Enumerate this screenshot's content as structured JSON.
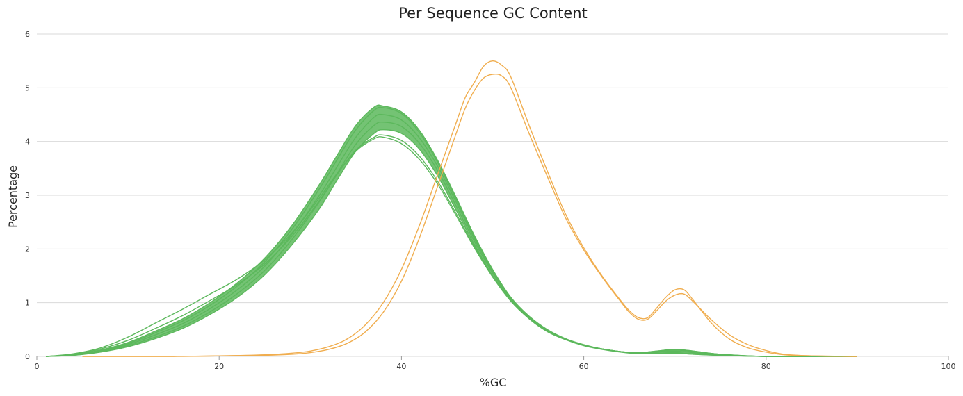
{
  "chart_data": {
    "type": "line",
    "title": "Per Sequence GC Content",
    "xlabel": "%GC",
    "ylabel": "Percentage",
    "xlim": [
      0,
      100
    ],
    "ylim": [
      0,
      6
    ],
    "xticks": [
      0,
      20,
      40,
      60,
      80,
      100
    ],
    "yticks": [
      0,
      1,
      2,
      3,
      4,
      5,
      6
    ],
    "grid": "horizontal",
    "legend": "none",
    "colors": {
      "pass": "#5cb85c",
      "warn": "#f0ad4e"
    },
    "series": [
      {
        "status": "pass",
        "points": [
          [
            1,
            0
          ],
          [
            4,
            0.02
          ],
          [
            7,
            0.08
          ],
          [
            10,
            0.18
          ],
          [
            13,
            0.33
          ],
          [
            16,
            0.52
          ],
          [
            19,
            0.78
          ],
          [
            22,
            1.1
          ],
          [
            25,
            1.52
          ],
          [
            28,
            2.08
          ],
          [
            31,
            2.75
          ],
          [
            33,
            3.3
          ],
          [
            35,
            3.82
          ],
          [
            37,
            4.15
          ],
          [
            38,
            4.22
          ],
          [
            40,
            4.15
          ],
          [
            42,
            3.85
          ],
          [
            44,
            3.35
          ],
          [
            46,
            2.72
          ],
          [
            48,
            2.08
          ],
          [
            50,
            1.5
          ],
          [
            52,
            1.03
          ],
          [
            54,
            0.7
          ],
          [
            56,
            0.46
          ],
          [
            58,
            0.31
          ],
          [
            60,
            0.2
          ],
          [
            62,
            0.13
          ],
          [
            64,
            0.08
          ],
          [
            66,
            0.05
          ],
          [
            68,
            0.06
          ],
          [
            70,
            0.07
          ],
          [
            72,
            0.05
          ],
          [
            75,
            0.02
          ],
          [
            80,
            0
          ],
          [
            90,
            0
          ]
        ]
      },
      {
        "status": "pass",
        "points": [
          [
            1,
            0
          ],
          [
            4,
            0.02
          ],
          [
            7,
            0.09
          ],
          [
            10,
            0.2
          ],
          [
            13,
            0.36
          ],
          [
            16,
            0.56
          ],
          [
            19,
            0.83
          ],
          [
            22,
            1.17
          ],
          [
            25,
            1.6
          ],
          [
            28,
            2.18
          ],
          [
            31,
            2.88
          ],
          [
            33,
            3.42
          ],
          [
            35,
            3.95
          ],
          [
            37,
            4.3
          ],
          [
            38,
            4.36
          ],
          [
            40,
            4.28
          ],
          [
            42,
            3.96
          ],
          [
            44,
            3.45
          ],
          [
            46,
            2.8
          ],
          [
            48,
            2.14
          ],
          [
            50,
            1.55
          ],
          [
            52,
            1.06
          ],
          [
            54,
            0.72
          ],
          [
            56,
            0.48
          ],
          [
            58,
            0.32
          ],
          [
            60,
            0.21
          ],
          [
            62,
            0.14
          ],
          [
            64,
            0.09
          ],
          [
            66,
            0.06
          ],
          [
            68,
            0.08
          ],
          [
            70,
            0.1
          ],
          [
            72,
            0.07
          ],
          [
            75,
            0.03
          ],
          [
            80,
            0
          ],
          [
            90,
            0
          ]
        ]
      },
      {
        "status": "pass",
        "points": [
          [
            1,
            0
          ],
          [
            4,
            0.03
          ],
          [
            7,
            0.1
          ],
          [
            10,
            0.22
          ],
          [
            13,
            0.4
          ],
          [
            16,
            0.61
          ],
          [
            19,
            0.89
          ],
          [
            22,
            1.24
          ],
          [
            25,
            1.68
          ],
          [
            28,
            2.28
          ],
          [
            31,
            3.0
          ],
          [
            33,
            3.55
          ],
          [
            35,
            4.08
          ],
          [
            37,
            4.45
          ],
          [
            38,
            4.5
          ],
          [
            40,
            4.4
          ],
          [
            42,
            4.06
          ],
          [
            44,
            3.53
          ],
          [
            46,
            2.87
          ],
          [
            48,
            2.19
          ],
          [
            50,
            1.58
          ],
          [
            52,
            1.08
          ],
          [
            54,
            0.73
          ],
          [
            56,
            0.49
          ],
          [
            58,
            0.32
          ],
          [
            60,
            0.21
          ],
          [
            62,
            0.14
          ],
          [
            64,
            0.09
          ],
          [
            66,
            0.06
          ],
          [
            68,
            0.09
          ],
          [
            70,
            0.12
          ],
          [
            72,
            0.09
          ],
          [
            75,
            0.04
          ],
          [
            80,
            0
          ],
          [
            90,
            0
          ]
        ]
      },
      {
        "status": "pass",
        "points": [
          [
            1,
            0
          ],
          [
            4,
            0.03
          ],
          [
            7,
            0.11
          ],
          [
            10,
            0.24
          ],
          [
            13,
            0.44
          ],
          [
            16,
            0.66
          ],
          [
            19,
            0.95
          ],
          [
            22,
            1.31
          ],
          [
            25,
            1.76
          ],
          [
            28,
            2.37
          ],
          [
            31,
            3.12
          ],
          [
            33,
            3.68
          ],
          [
            35,
            4.22
          ],
          [
            37,
            4.58
          ],
          [
            38,
            4.63
          ],
          [
            40,
            4.52
          ],
          [
            42,
            4.16
          ],
          [
            44,
            3.6
          ],
          [
            46,
            2.92
          ],
          [
            48,
            2.22
          ],
          [
            50,
            1.6
          ],
          [
            52,
            1.09
          ],
          [
            54,
            0.74
          ],
          [
            56,
            0.49
          ],
          [
            58,
            0.32
          ],
          [
            60,
            0.21
          ],
          [
            62,
            0.14
          ],
          [
            64,
            0.09
          ],
          [
            66,
            0.07
          ],
          [
            68,
            0.1
          ],
          [
            70,
            0.13
          ],
          [
            72,
            0.1
          ],
          [
            75,
            0.04
          ],
          [
            80,
            0
          ],
          [
            90,
            0
          ]
        ]
      },
      {
        "status": "pass",
        "points": [
          [
            1,
            0
          ],
          [
            4,
            0.03
          ],
          [
            7,
            0.12
          ],
          [
            10,
            0.26
          ],
          [
            13,
            0.47
          ],
          [
            16,
            0.7
          ],
          [
            19,
            1.0
          ],
          [
            22,
            1.37
          ],
          [
            25,
            1.83
          ],
          [
            28,
            2.44
          ],
          [
            31,
            3.2
          ],
          [
            33,
            3.76
          ],
          [
            35,
            4.3
          ],
          [
            37,
            4.64
          ],
          [
            38,
            4.66
          ],
          [
            40,
            4.55
          ],
          [
            42,
            4.2
          ],
          [
            44,
            3.64
          ],
          [
            46,
            2.96
          ],
          [
            48,
            2.25
          ],
          [
            50,
            1.62
          ],
          [
            52,
            1.1
          ],
          [
            54,
            0.75
          ],
          [
            56,
            0.5
          ],
          [
            58,
            0.33
          ],
          [
            60,
            0.21
          ],
          [
            62,
            0.14
          ],
          [
            64,
            0.09
          ],
          [
            66,
            0.07
          ],
          [
            68,
            0.1
          ],
          [
            70,
            0.13
          ],
          [
            72,
            0.1
          ],
          [
            75,
            0.04
          ],
          [
            80,
            0
          ],
          [
            90,
            0
          ]
        ]
      },
      {
        "status": "pass",
        "points": [
          [
            1,
            0
          ],
          [
            4,
            0.05
          ],
          [
            7,
            0.16
          ],
          [
            10,
            0.36
          ],
          [
            13,
            0.62
          ],
          [
            16,
            0.88
          ],
          [
            19,
            1.16
          ],
          [
            22,
            1.44
          ],
          [
            25,
            1.8
          ],
          [
            28,
            2.3
          ],
          [
            31,
            2.95
          ],
          [
            33,
            3.42
          ],
          [
            35,
            3.82
          ],
          [
            37,
            4.05
          ],
          [
            38,
            4.08
          ],
          [
            40,
            3.96
          ],
          [
            42,
            3.66
          ],
          [
            44,
            3.2
          ],
          [
            46,
            2.62
          ],
          [
            48,
            2.02
          ],
          [
            50,
            1.48
          ],
          [
            52,
            1.03
          ],
          [
            54,
            0.71
          ],
          [
            56,
            0.48
          ],
          [
            58,
            0.32
          ],
          [
            60,
            0.21
          ],
          [
            62,
            0.14
          ],
          [
            64,
            0.09
          ],
          [
            66,
            0.06
          ],
          [
            68,
            0.06
          ],
          [
            70,
            0.06
          ],
          [
            72,
            0.04
          ],
          [
            75,
            0.02
          ],
          [
            80,
            0
          ],
          [
            90,
            0
          ]
        ]
      },
      {
        "status": "pass",
        "points": [
          [
            1,
            0
          ],
          [
            4,
            0.04
          ],
          [
            7,
            0.14
          ],
          [
            10,
            0.3
          ],
          [
            13,
            0.52
          ],
          [
            16,
            0.76
          ],
          [
            19,
            1.04
          ],
          [
            22,
            1.34
          ],
          [
            25,
            1.72
          ],
          [
            28,
            2.24
          ],
          [
            31,
            2.9
          ],
          [
            33,
            3.4
          ],
          [
            35,
            3.84
          ],
          [
            37,
            4.08
          ],
          [
            38,
            4.12
          ],
          [
            40,
            4.02
          ],
          [
            42,
            3.72
          ],
          [
            44,
            3.25
          ],
          [
            46,
            2.66
          ],
          [
            48,
            2.05
          ],
          [
            50,
            1.5
          ],
          [
            52,
            1.05
          ],
          [
            54,
            0.72
          ],
          [
            56,
            0.49
          ],
          [
            58,
            0.33
          ],
          [
            60,
            0.22
          ],
          [
            62,
            0.14
          ],
          [
            64,
            0.09
          ],
          [
            66,
            0.06
          ],
          [
            68,
            0.06
          ],
          [
            70,
            0.06
          ],
          [
            72,
            0.04
          ],
          [
            75,
            0.02
          ],
          [
            80,
            0
          ],
          [
            90,
            0
          ]
        ]
      },
      {
        "status": "warn",
        "points": [
          [
            5,
            0
          ],
          [
            15,
            0
          ],
          [
            20,
            0.01
          ],
          [
            25,
            0.03
          ],
          [
            28,
            0.06
          ],
          [
            30,
            0.1
          ],
          [
            32,
            0.18
          ],
          [
            34,
            0.32
          ],
          [
            36,
            0.58
          ],
          [
            38,
            1.0
          ],
          [
            40,
            1.62
          ],
          [
            42,
            2.45
          ],
          [
            44,
            3.4
          ],
          [
            46,
            4.35
          ],
          [
            47,
            4.82
          ],
          [
            48,
            5.1
          ],
          [
            49,
            5.4
          ],
          [
            50,
            5.5
          ],
          [
            51,
            5.42
          ],
          [
            52,
            5.2
          ],
          [
            54,
            4.3
          ],
          [
            56,
            3.45
          ],
          [
            58,
            2.65
          ],
          [
            60,
            2.02
          ],
          [
            62,
            1.5
          ],
          [
            64,
            1.05
          ],
          [
            65,
            0.85
          ],
          [
            66,
            0.72
          ],
          [
            67,
            0.72
          ],
          [
            68,
            0.9
          ],
          [
            69,
            1.1
          ],
          [
            70,
            1.24
          ],
          [
            71,
            1.24
          ],
          [
            72,
            1.05
          ],
          [
            74,
            0.62
          ],
          [
            76,
            0.32
          ],
          [
            78,
            0.16
          ],
          [
            80,
            0.08
          ],
          [
            82,
            0.03
          ],
          [
            85,
            0.01
          ],
          [
            90,
            0
          ]
        ]
      },
      {
        "status": "warn",
        "points": [
          [
            5,
            0
          ],
          [
            15,
            0
          ],
          [
            20,
            0.01
          ],
          [
            25,
            0.02
          ],
          [
            28,
            0.04
          ],
          [
            30,
            0.07
          ],
          [
            32,
            0.13
          ],
          [
            34,
            0.24
          ],
          [
            36,
            0.45
          ],
          [
            38,
            0.82
          ],
          [
            40,
            1.4
          ],
          [
            42,
            2.22
          ],
          [
            44,
            3.18
          ],
          [
            46,
            4.15
          ],
          [
            47,
            4.62
          ],
          [
            48,
            4.95
          ],
          [
            49,
            5.18
          ],
          [
            50,
            5.25
          ],
          [
            51,
            5.22
          ],
          [
            52,
            5.0
          ],
          [
            54,
            4.15
          ],
          [
            56,
            3.35
          ],
          [
            58,
            2.58
          ],
          [
            60,
            1.98
          ],
          [
            62,
            1.48
          ],
          [
            64,
            1.03
          ],
          [
            65,
            0.82
          ],
          [
            66,
            0.69
          ],
          [
            67,
            0.69
          ],
          [
            68,
            0.85
          ],
          [
            69,
            1.03
          ],
          [
            70,
            1.14
          ],
          [
            71,
            1.16
          ],
          [
            72,
            1.02
          ],
          [
            74,
            0.68
          ],
          [
            76,
            0.4
          ],
          [
            78,
            0.22
          ],
          [
            80,
            0.11
          ],
          [
            82,
            0.04
          ],
          [
            85,
            0.01
          ],
          [
            90,
            0
          ]
        ]
      }
    ]
  }
}
